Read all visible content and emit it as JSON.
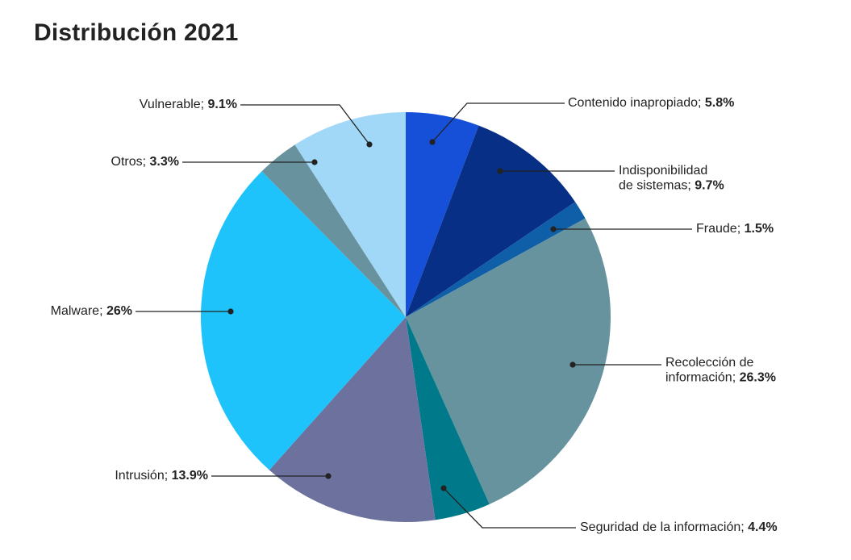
{
  "title": "Distribución 2021",
  "chart_data": {
    "type": "pie",
    "title": "Distribución 2021",
    "slices": [
      {
        "label": "Contenido inapropiado",
        "lines": [
          "Contenido inapropiado"
        ],
        "value": 5.8,
        "value_text": "5.8%",
        "color": "#1650D8"
      },
      {
        "label": "Indisponibilidad de sistemas",
        "lines": [
          "Indisponibilidad",
          "de sistemas"
        ],
        "value": 9.7,
        "value_text": "9.7%",
        "color": "#072F86"
      },
      {
        "label": "Fraude",
        "lines": [
          "Fraude"
        ],
        "value": 1.5,
        "value_text": "1.5%",
        "color": "#0E5EA8"
      },
      {
        "label": "Recolección de información",
        "lines": [
          "Recolección de",
          "información"
        ],
        "value": 26.3,
        "value_text": "26.3%",
        "color": "#67939E"
      },
      {
        "label": "Seguridad de la información",
        "lines": [
          "Seguridad de la información"
        ],
        "value": 4.4,
        "value_text": "4.4%",
        "color": "#007A8A"
      },
      {
        "label": "Intrusión",
        "lines": [
          "Intrusión"
        ],
        "value": 13.9,
        "value_text": "13.9%",
        "color": "#6C719D"
      },
      {
        "label": "Malware",
        "lines": [
          "Malware"
        ],
        "value": 26,
        "value_text": "26%",
        "color": "#1EC3FC"
      },
      {
        "label": "Otros",
        "lines": [
          "Otros"
        ],
        "value": 3.3,
        "value_text": "3.3%",
        "color": "#68939E"
      },
      {
        "label": "Vulnerable",
        "lines": [
          "Vulnerable"
        ],
        "value": 9.1,
        "value_text": "9.1%",
        "color": "#A1D8F7"
      }
    ],
    "start_angle": "12 o'clock",
    "direction": "clockwise",
    "legend": "none"
  }
}
